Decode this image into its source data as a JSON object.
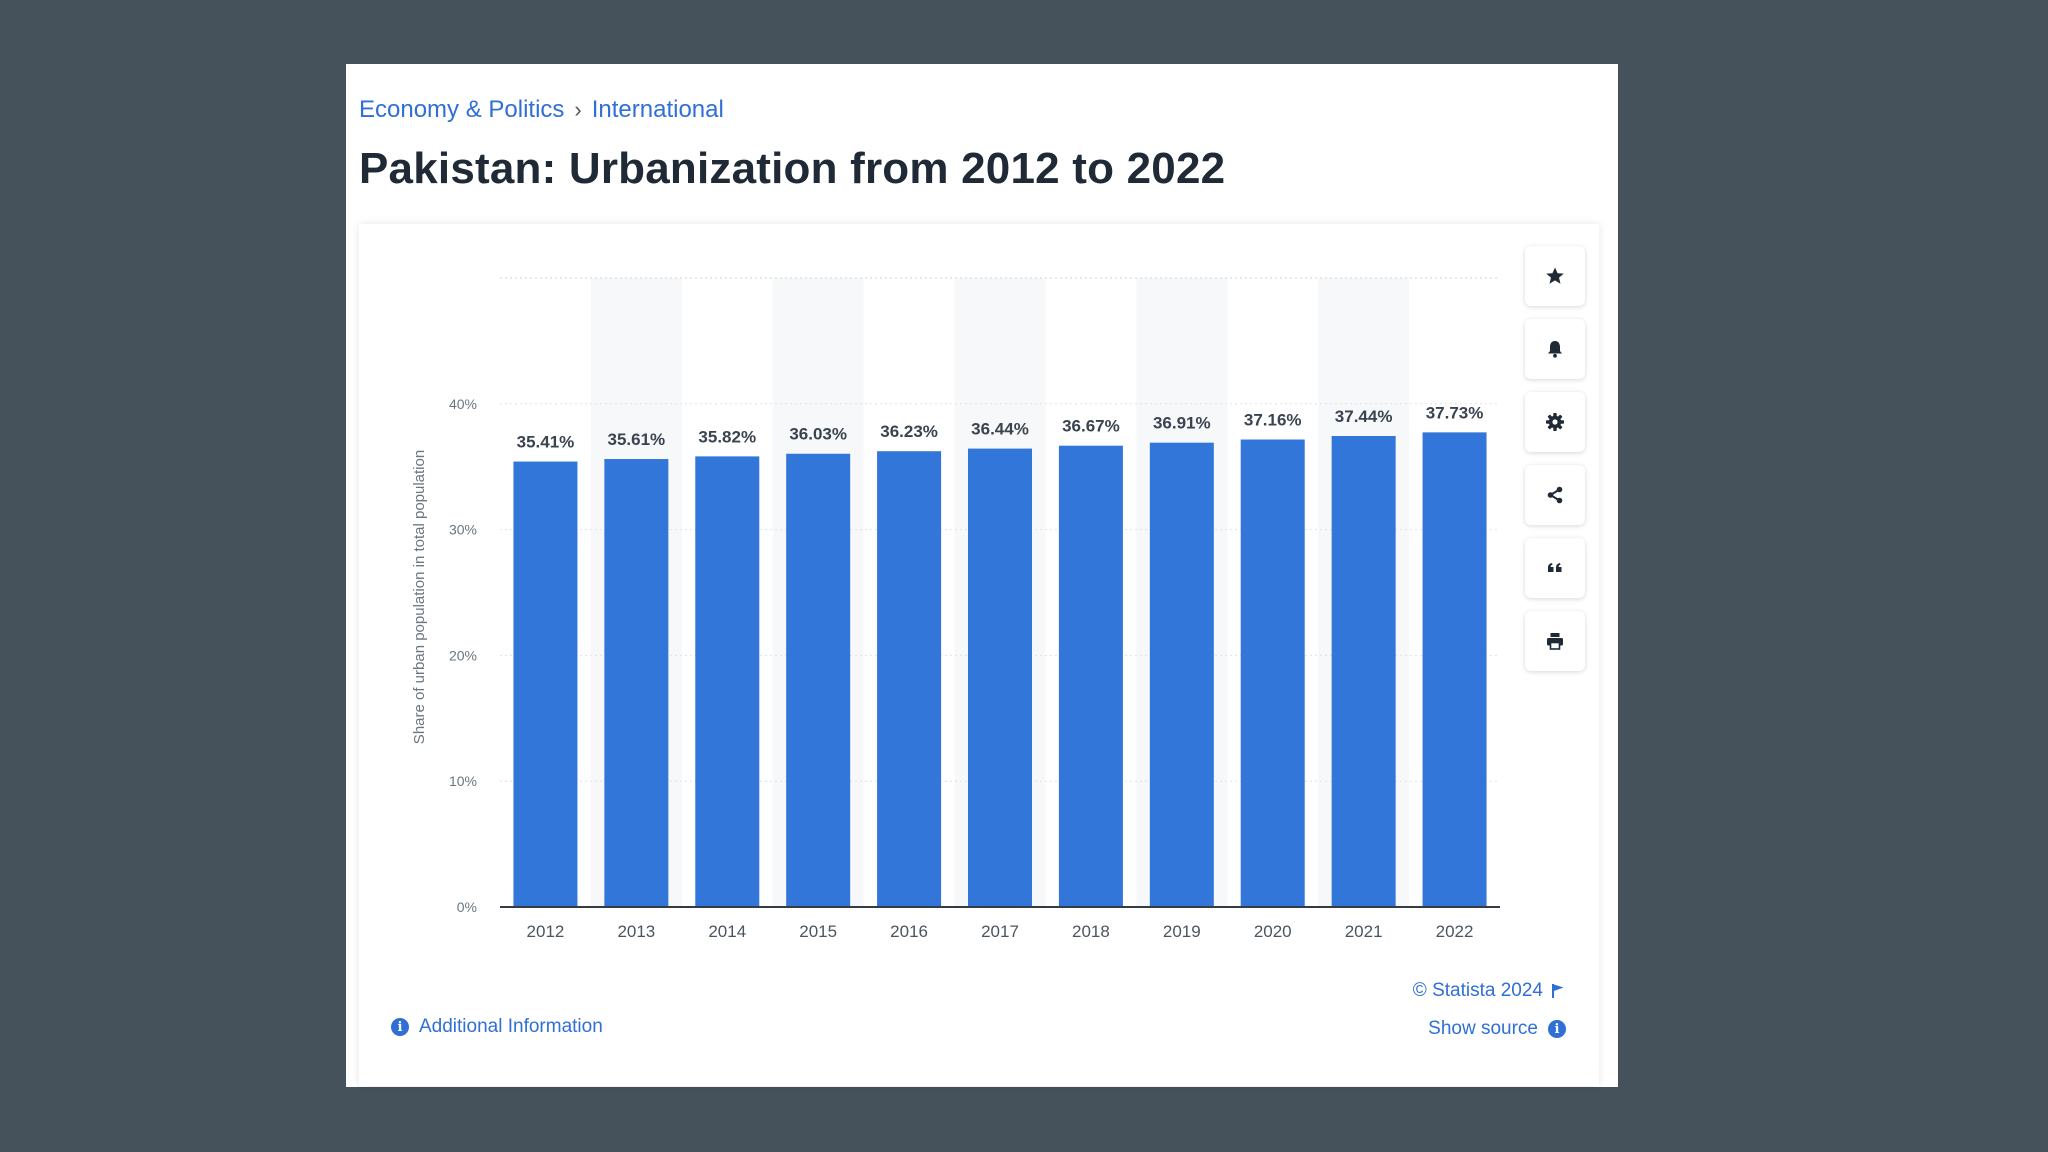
{
  "breadcrumb": {
    "items": [
      "Economy & Politics",
      "International"
    ],
    "separator": "›"
  },
  "page_title": "Pakistan: Urbanization from 2012 to 2022",
  "toolbar": {
    "icons": [
      "star-icon",
      "bell-icon",
      "gear-icon",
      "share-icon",
      "quote-icon",
      "print-icon"
    ]
  },
  "footer": {
    "additional_info": "Additional Information",
    "copyright": "© Statista 2024",
    "show_source": "Show source"
  },
  "colors": {
    "bar": "#3276d9",
    "link": "#2f6fd6",
    "title": "#1f2a36",
    "background": "#46525b"
  },
  "chart_data": {
    "type": "bar",
    "title": "",
    "xlabel": "",
    "ylabel": "Share of urban population in total population",
    "categories": [
      "2012",
      "2013",
      "2014",
      "2015",
      "2016",
      "2017",
      "2018",
      "2019",
      "2020",
      "2021",
      "2022"
    ],
    "values": [
      35.41,
      35.61,
      35.82,
      36.03,
      36.23,
      36.44,
      36.67,
      36.91,
      37.16,
      37.44,
      37.73
    ],
    "value_labels": [
      "35.41%",
      "35.61%",
      "35.82%",
      "36.03%",
      "36.23%",
      "36.44%",
      "36.67%",
      "36.91%",
      "37.16%",
      "37.44%",
      "37.73%"
    ],
    "ylim": [
      0,
      50
    ],
    "yticks": [
      0,
      10,
      20,
      30,
      40
    ],
    "ytick_labels": [
      "0%",
      "10%",
      "20%",
      "30%",
      "40%"
    ],
    "grid": true
  }
}
